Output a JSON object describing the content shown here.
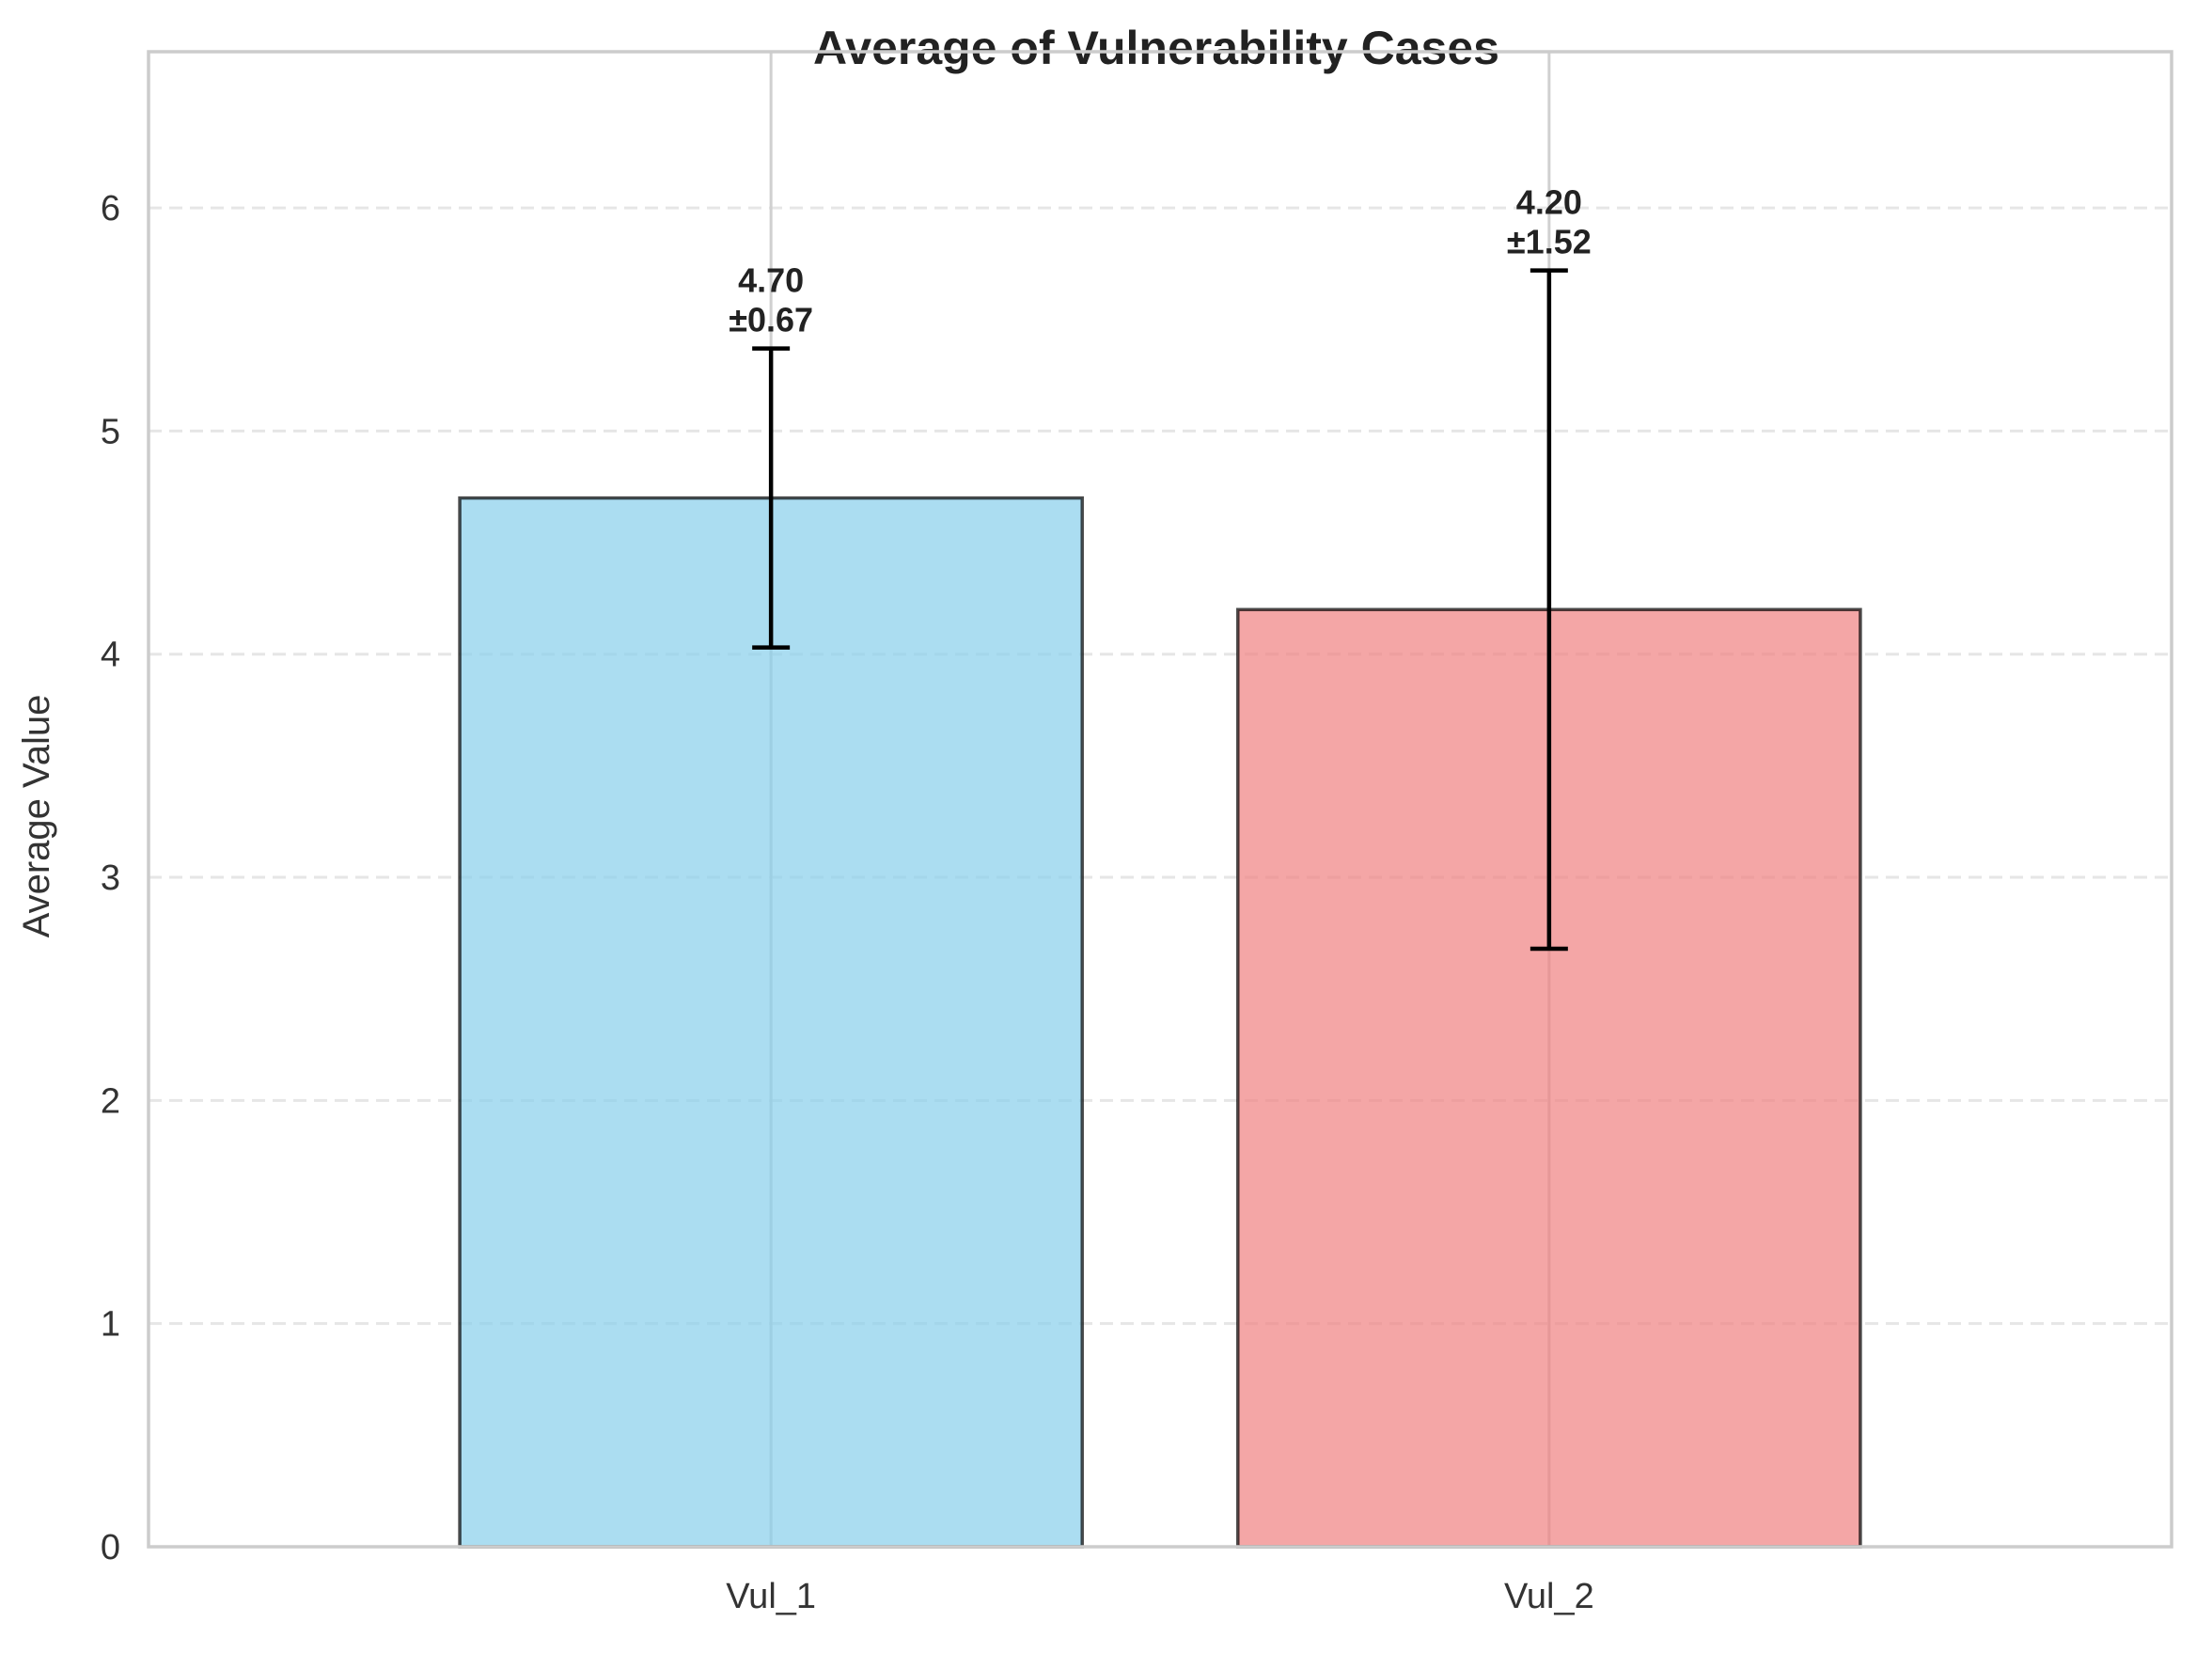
{
  "chart_data": {
    "type": "bar",
    "title": "Average of Vulnerability Cases",
    "xlabel": "",
    "ylabel": "Average Value",
    "categories": [
      "Vul_1",
      "Vul_2"
    ],
    "values": [
      4.7,
      4.2
    ],
    "errors": [
      0.67,
      1.52
    ],
    "value_labels": [
      "4.70",
      "4.20"
    ],
    "error_labels": [
      "±0.67",
      "±1.52"
    ],
    "ylim": [
      0,
      6.7
    ],
    "yticks": [
      0,
      1,
      2,
      3,
      4,
      5,
      6
    ],
    "grid": true,
    "colors": [
      "#87CEEB",
      "#F08080"
    ],
    "bar_opacity": 0.7,
    "edge_color": "#000000",
    "error_color": "#000000"
  }
}
